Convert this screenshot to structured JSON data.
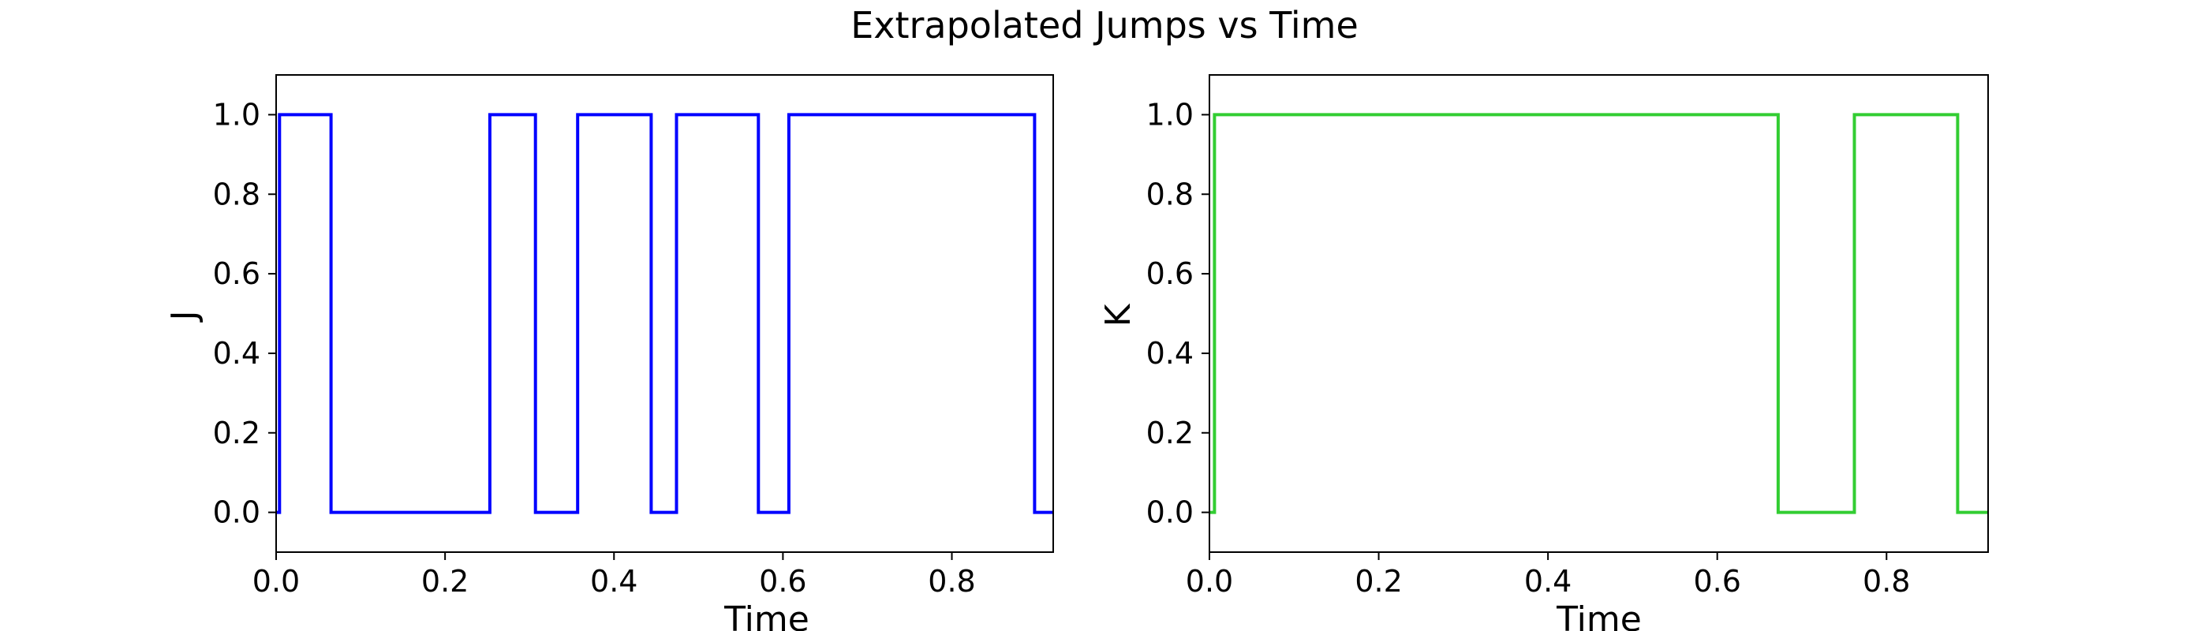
{
  "figure": {
    "title": "Extrapolated Jumps vs Time"
  },
  "chart_data": [
    {
      "type": "line",
      "step": true,
      "xlabel": "Time",
      "ylabel": "J",
      "xlim": [
        0,
        0.92
      ],
      "ylim": [
        -0.1,
        1.1
      ],
      "xticks": [
        "0.0",
        "0.2",
        "0.4",
        "0.6",
        "0.8"
      ],
      "yticks": [
        "0.0",
        "0.2",
        "0.4",
        "0.6",
        "0.8",
        "1.0"
      ],
      "grid": false,
      "series": [
        {
          "color": "#0000ff",
          "x": [
            0.0,
            0.004,
            0.004,
            0.065,
            0.065,
            0.253,
            0.253,
            0.307,
            0.307,
            0.357,
            0.357,
            0.444,
            0.444,
            0.474,
            0.474,
            0.571,
            0.571,
            0.607,
            0.607,
            0.898,
            0.898,
            0.92
          ],
          "y": [
            0,
            0,
            1,
            1,
            0,
            0,
            1,
            1,
            0,
            0,
            1,
            1,
            0,
            0,
            1,
            1,
            0,
            0,
            1,
            1,
            0,
            0
          ]
        }
      ]
    },
    {
      "type": "line",
      "step": true,
      "xlabel": "Time",
      "ylabel": "K",
      "xlim": [
        0,
        0.92
      ],
      "ylim": [
        -0.1,
        1.1
      ],
      "xticks": [
        "0.0",
        "0.2",
        "0.4",
        "0.6",
        "0.8"
      ],
      "yticks": [
        "0.0",
        "0.2",
        "0.4",
        "0.6",
        "0.8",
        "1.0"
      ],
      "grid": false,
      "series": [
        {
          "color": "#32cd32",
          "x": [
            0.0,
            0.006,
            0.006,
            0.672,
            0.672,
            0.762,
            0.762,
            0.884,
            0.884,
            0.92
          ],
          "y": [
            0,
            0,
            1,
            1,
            0,
            0,
            1,
            1,
            0,
            0
          ]
        }
      ]
    }
  ]
}
